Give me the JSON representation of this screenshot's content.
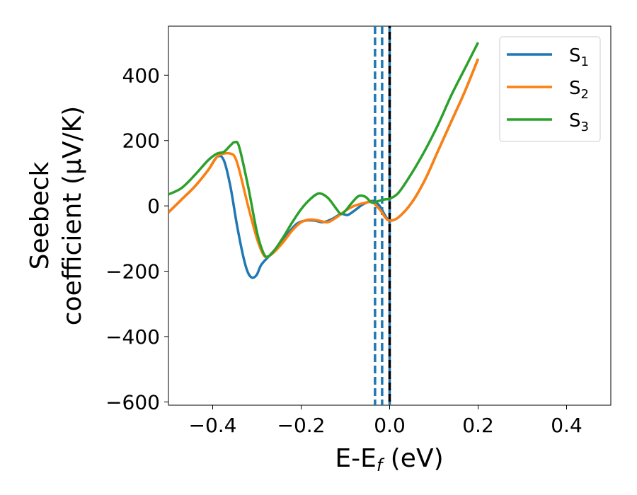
{
  "chart_data": {
    "type": "line",
    "xlabel": "E-E_f (eV)",
    "xlabel_parts": {
      "main": "E-E",
      "sub": "f",
      "tail": " (eV)"
    },
    "ylabel_line1": "Seebeck",
    "ylabel_line2": "coefficient  (μV/K)",
    "xlim": [
      -0.5,
      0.5
    ],
    "ylim": [
      -610,
      550
    ],
    "xticks": [
      -0.4,
      -0.2,
      0.0,
      0.2,
      0.4
    ],
    "xtick_labels": [
      "−0.4",
      "−0.2",
      "0.0",
      "0.2",
      "0.4"
    ],
    "yticks": [
      -600,
      -400,
      -200,
      0,
      200,
      400
    ],
    "ytick_labels": [
      "−600",
      "−400",
      "−200",
      "0",
      "200",
      "400"
    ],
    "grid": false,
    "legend_position": "top-right",
    "series": [
      {
        "name": "S1",
        "label_main": "S",
        "label_sub": "1",
        "color": "#1f77b4",
        "x": [
          -0.5,
          -0.47,
          -0.44,
          -0.41,
          -0.39,
          -0.375,
          -0.36,
          -0.345,
          -0.33,
          -0.32,
          -0.31,
          -0.3,
          -0.29,
          -0.27,
          -0.25,
          -0.23,
          -0.21,
          -0.19,
          -0.17,
          -0.15,
          -0.13,
          -0.11,
          -0.095,
          -0.08,
          -0.06,
          -0.04,
          -0.03,
          -0.02,
          -0.01,
          0.0,
          0.02,
          0.05,
          0.08,
          0.11,
          0.14,
          0.17,
          0.2
        ],
        "y": [
          -20,
          20,
          60,
          110,
          150,
          140,
          60,
          -60,
          -160,
          -205,
          -220,
          -210,
          -180,
          -150,
          -120,
          -85,
          -55,
          -45,
          -45,
          -50,
          -40,
          -25,
          -28,
          -15,
          5,
          15,
          10,
          -5,
          -30,
          -45,
          -35,
          10,
          80,
          170,
          260,
          350,
          450
        ]
      },
      {
        "name": "S2",
        "label_main": "S",
        "label_sub": "2",
        "color": "#ff7f0e",
        "x": [
          -0.5,
          -0.47,
          -0.44,
          -0.41,
          -0.39,
          -0.375,
          -0.36,
          -0.35,
          -0.34,
          -0.32,
          -0.3,
          -0.285,
          -0.275,
          -0.26,
          -0.24,
          -0.22,
          -0.2,
          -0.18,
          -0.16,
          -0.14,
          -0.12,
          -0.1,
          -0.08,
          -0.06,
          -0.04,
          -0.03,
          -0.02,
          -0.01,
          0.0,
          0.02,
          0.05,
          0.08,
          0.11,
          0.14,
          0.17,
          0.2
        ],
        "y": [
          -20,
          20,
          60,
          110,
          150,
          160,
          160,
          150,
          110,
          0,
          -100,
          -150,
          -155,
          -140,
          -110,
          -75,
          -50,
          -42,
          -45,
          -50,
          -35,
          -15,
          0,
          8,
          12,
          0,
          -15,
          -35,
          -45,
          -35,
          10,
          80,
          170,
          260,
          350,
          450
        ]
      },
      {
        "name": "S3",
        "label_main": "S",
        "label_sub": "3",
        "color": "#2ca02c",
        "x": [
          -0.5,
          -0.47,
          -0.44,
          -0.41,
          -0.39,
          -0.375,
          -0.36,
          -0.35,
          -0.34,
          -0.32,
          -0.3,
          -0.285,
          -0.275,
          -0.26,
          -0.24,
          -0.22,
          -0.2,
          -0.18,
          -0.16,
          -0.14,
          -0.12,
          -0.11,
          -0.1,
          -0.085,
          -0.07,
          -0.055,
          -0.04,
          -0.025,
          -0.01,
          0.0,
          0.02,
          0.05,
          0.08,
          0.11,
          0.14,
          0.17,
          0.2
        ],
        "y": [
          35,
          55,
          95,
          140,
          160,
          165,
          185,
          195,
          180,
          60,
          -80,
          -145,
          -155,
          -135,
          -95,
          -50,
          -10,
          20,
          38,
          25,
          -10,
          -25,
          -15,
          10,
          30,
          28,
          10,
          15,
          20,
          22,
          40,
          100,
          170,
          250,
          340,
          420,
          500
        ]
      }
    ],
    "vlines": [
      {
        "x": -0.033,
        "style": "dashed",
        "color": "#1f77b4"
      },
      {
        "x": -0.017,
        "style": "dashed",
        "color": "#1f77b4"
      },
      {
        "x": 0.0,
        "style": "dashed",
        "color": "#1f77b4"
      },
      {
        "x": 0.0,
        "style": "dashed-overlay",
        "color": "#000000"
      }
    ]
  }
}
